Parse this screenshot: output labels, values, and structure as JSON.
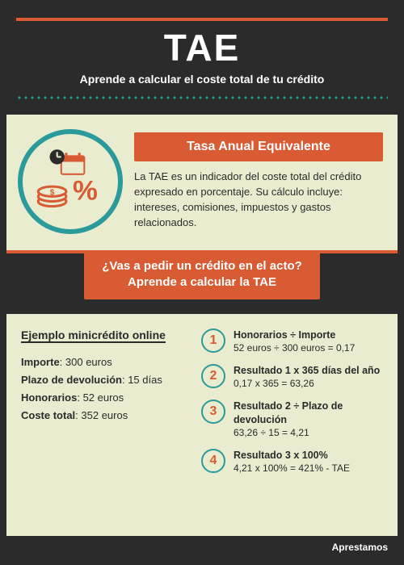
{
  "colors": {
    "dark": "#2b2b2b",
    "cream": "#e9eccf",
    "orange": "#d95b33",
    "teal": "#2a9a9a"
  },
  "header": {
    "title": "TAE",
    "subtitle": "Aprende a calcular el coste total de tu crédito"
  },
  "section1": {
    "tag": "Tasa Anual Equivalente",
    "description": "La TAE es un indicador del coste total del crédito expresado en porcentaje. Su cálculo incluye: intereses, comisiones, impuestos y gastos relacionados.",
    "icon": "percent-clock-calendar-coins"
  },
  "midbar": {
    "line1": "¿Vas a pedir un crédito en el acto?",
    "line2": "Aprende a calcular la TAE"
  },
  "example": {
    "title": "Ejemplo minicrédito online",
    "rows": [
      {
        "label": "Importe",
        "value": "300 euros"
      },
      {
        "label": "Plazo de devolución",
        "value": "15 días"
      },
      {
        "label": "Honorarios",
        "value": "52 euros"
      },
      {
        "label": "Coste total",
        "value": "352 euros"
      }
    ]
  },
  "steps": [
    {
      "n": "1",
      "title": "Honorarios ÷ Importe",
      "calc": "52 euros ÷ 300 euros = 0,17"
    },
    {
      "n": "2",
      "title": "Resultado 1 x 365 días del año",
      "calc": "0,17 x 365 = 63,26"
    },
    {
      "n": "3",
      "title": "Resultado 2 ÷ Plazo de devolución",
      "calc": "63,26 ÷ 15 = 4,21"
    },
    {
      "n": "4",
      "title": "Resultado 3 x 100%",
      "calc": "4,21 x 100% = 421% - TAE"
    }
  ],
  "footer": {
    "brand": "Aprestamos"
  }
}
